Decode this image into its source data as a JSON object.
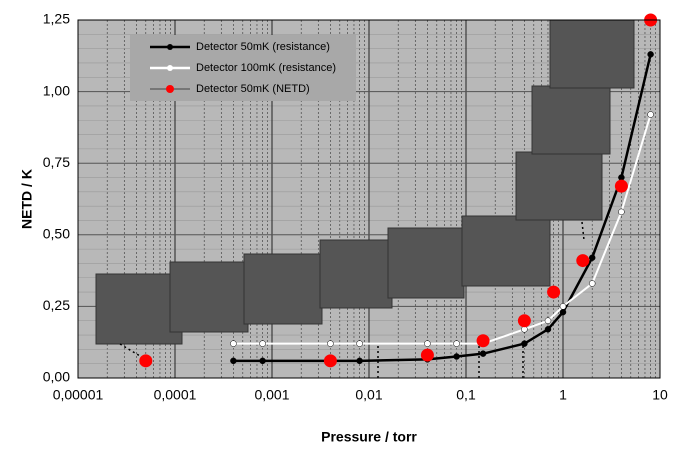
{
  "chart_data": {
    "type": "line",
    "xlabel": "Pressure / torr",
    "ylabel": "NETD / K",
    "log_x": true,
    "grid": true,
    "xlim": [
      1e-05,
      10
    ],
    "ylim": [
      0,
      1.25
    ],
    "xticks": [
      {
        "value": 1e-05,
        "label": "0,00001"
      },
      {
        "value": 0.0001,
        "label": "0,0001"
      },
      {
        "value": 0.001,
        "label": "0,001"
      },
      {
        "value": 0.01,
        "label": "0,01"
      },
      {
        "value": 0.1,
        "label": "0,1"
      },
      1,
      10
    ],
    "yticks": [
      {
        "value": 0,
        "label": "0,00"
      },
      {
        "value": 0.25,
        "label": "0,25"
      },
      {
        "value": 0.5,
        "label": "0,50"
      },
      {
        "value": 0.75,
        "label": "0,75"
      },
      {
        "value": 1,
        "label": "1,00"
      },
      {
        "value": 1.25,
        "label": "1,25"
      }
    ],
    "series": [
      {
        "name": "Detector 50mK (resistance)",
        "color": "#000000",
        "line": true,
        "x": [
          0.0004,
          0.0008,
          0.004,
          0.008,
          0.04,
          0.08,
          0.15,
          0.4,
          0.7,
          1,
          2,
          4,
          8
        ],
        "values": [
          0.06,
          0.06,
          0.06,
          0.06,
          0.065,
          0.075,
          0.085,
          0.12,
          0.17,
          0.23,
          0.42,
          0.7,
          1.13
        ]
      },
      {
        "name": "Detector 100mK (resistance)",
        "color": "#ffffff",
        "line": true,
        "x": [
          0.0004,
          0.0008,
          0.004,
          0.008,
          0.04,
          0.08,
          0.15,
          0.4,
          0.7,
          1,
          2,
          4,
          8
        ],
        "values": [
          0.12,
          0.12,
          0.12,
          0.12,
          0.12,
          0.12,
          0.12,
          0.17,
          0.2,
          0.25,
          0.33,
          0.58,
          0.92
        ]
      },
      {
        "name": "Detector 50mK (NETD)",
        "color": "#ff0000",
        "line": false,
        "x": [
          5e-05,
          0.004,
          0.04,
          0.15,
          0.4,
          0.8,
          1.6,
          4,
          8
        ],
        "values": [
          0.06,
          0.06,
          0.08,
          0.13,
          0.2,
          0.3,
          0.41,
          0.67,
          1.25
        ]
      }
    ]
  }
}
